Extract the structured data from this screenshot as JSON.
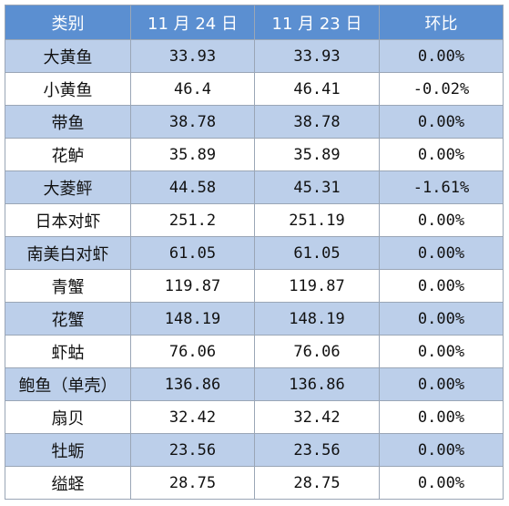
{
  "table": {
    "headers": [
      "类别",
      "11 月 24 日",
      "11 月 23 日",
      "环比"
    ],
    "rows": [
      [
        "大黄鱼",
        "33.93",
        "33.93",
        "0.00%"
      ],
      [
        "小黄鱼",
        "46.4",
        "46.41",
        "-0.02%"
      ],
      [
        "带鱼",
        "38.78",
        "38.78",
        "0.00%"
      ],
      [
        "花鲈",
        "35.89",
        "35.89",
        "0.00%"
      ],
      [
        "大菱鲆",
        "44.58",
        "45.31",
        "-1.61%"
      ],
      [
        "日本对虾",
        "251.2",
        "251.19",
        "0.00%"
      ],
      [
        "南美白对虾",
        "61.05",
        "61.05",
        "0.00%"
      ],
      [
        "青蟹",
        "119.87",
        "119.87",
        "0.00%"
      ],
      [
        "花蟹",
        "148.19",
        "148.19",
        "0.00%"
      ],
      [
        "虾蛄",
        "76.06",
        "76.06",
        "0.00%"
      ],
      [
        "鲍鱼（单壳）",
        "136.86",
        "136.86",
        "0.00%"
      ],
      [
        "扇贝",
        "32.42",
        "32.42",
        "0.00%"
      ],
      [
        "牡蛎",
        "23.56",
        "23.56",
        "0.00%"
      ],
      [
        "缢蛏",
        "28.75",
        "28.75",
        "0.00%"
      ]
    ]
  },
  "colors": {
    "header_bg": "#5b8fd1",
    "header_text": "#ffffff",
    "stripe_bg": "#bccfea",
    "plain_bg": "#ffffff",
    "border": "#9aa6b6"
  }
}
